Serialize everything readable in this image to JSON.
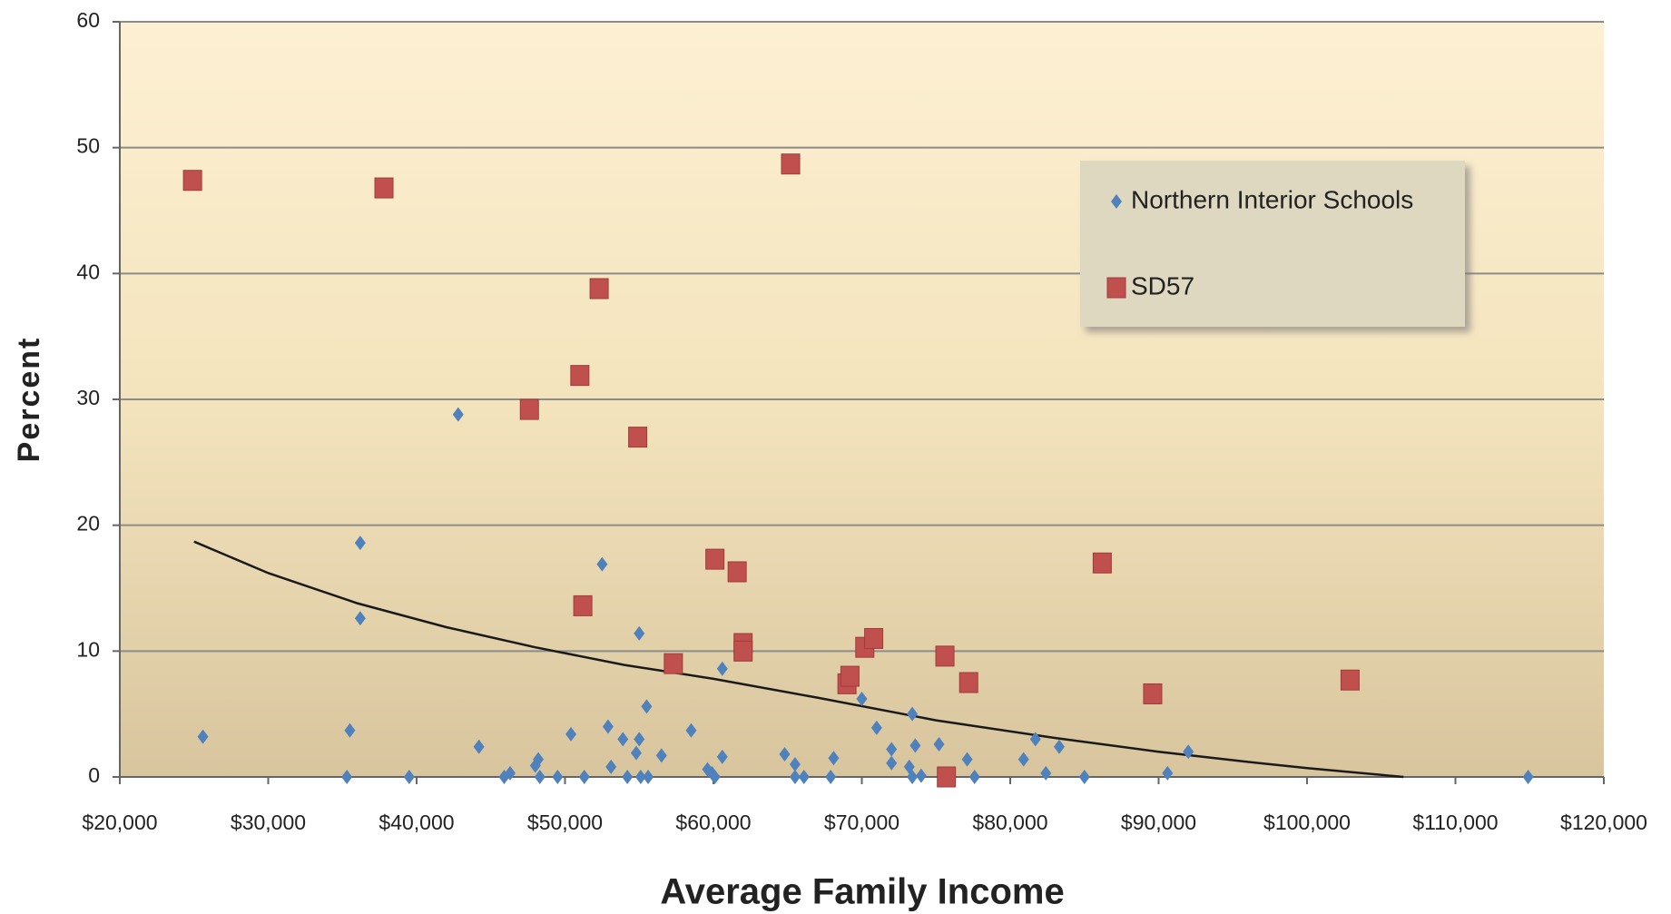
{
  "chart_data": {
    "type": "scatter",
    "x_label": "Average Family Income",
    "y_label": "Percent",
    "xlim": [
      20000,
      120000
    ],
    "ylim": [
      0,
      60
    ],
    "xticks": [
      {
        "value": 20000,
        "label": "$20,000"
      },
      {
        "value": 30000,
        "label": "$30,000"
      },
      {
        "value": 40000,
        "label": "$40,000"
      },
      {
        "value": 50000,
        "label": "$50,000"
      },
      {
        "value": 60000,
        "label": "$60,000"
      },
      {
        "value": 70000,
        "label": "$70,000"
      },
      {
        "value": 80000,
        "label": "$80,000"
      },
      {
        "value": 90000,
        "label": "$90,000"
      },
      {
        "value": 100000,
        "label": "$100,000"
      },
      {
        "value": 110000,
        "label": "$110,000"
      },
      {
        "value": 120000,
        "label": "$120,000"
      }
    ],
    "yticks": [
      0,
      10,
      20,
      30,
      40,
      50,
      60
    ],
    "grid": true,
    "legend": "upper-right",
    "series": [
      {
        "name": "Northern Interior Schools",
        "color": "#4f81bd",
        "marker": "diamond",
        "x": [
          25600,
          35300,
          35500,
          36200,
          36200,
          39500,
          42800,
          44200,
          45900,
          46300,
          48000,
          48200,
          48300,
          49500,
          50400,
          51300,
          52500,
          52900,
          53100,
          53900,
          54200,
          54800,
          55000,
          55000,
          55100,
          55500,
          55600,
          56500,
          58500,
          59600,
          59900,
          60100,
          60600,
          60600,
          64800,
          65500,
          65500,
          66100,
          67900,
          68100,
          70000,
          71000,
          72000,
          72000,
          73200,
          73400,
          73400,
          73600,
          74000,
          75200,
          77100,
          77600,
          80900,
          81700,
          82400,
          83300,
          85000,
          90600,
          92000,
          114900
        ],
        "values": [
          3.2,
          0,
          3.7,
          12.6,
          18.6,
          0,
          28.8,
          2.4,
          0,
          0.3,
          0.9,
          1.4,
          0,
          0,
          3.4,
          0,
          16.9,
          4,
          0.8,
          3,
          0,
          1.9,
          3,
          11.4,
          0,
          5.6,
          0,
          1.7,
          3.7,
          0.6,
          0.3,
          0,
          1.6,
          8.6,
          1.8,
          1,
          0,
          0,
          0,
          1.5,
          6.2,
          3.9,
          2.2,
          1.1,
          0.8,
          5,
          0,
          2.5,
          0.1,
          2.6,
          1.4,
          0,
          1.4,
          3,
          0.3,
          2.4,
          0,
          0.3,
          2,
          0
        ]
      },
      {
        "name": "SD57",
        "color": "#c0504d",
        "marker": "square",
        "x": [
          24900,
          37800,
          47600,
          51000,
          51200,
          52300,
          54900,
          57300,
          60100,
          61600,
          62000,
          62000,
          65200,
          69000,
          69200,
          70200,
          70800,
          75600,
          75700,
          77200,
          86200,
          89600,
          102900
        ],
        "values": [
          47.4,
          46.8,
          29.2,
          31.9,
          13.6,
          38.8,
          27,
          9,
          17.3,
          16.3,
          10.6,
          10,
          48.7,
          7.4,
          8,
          10.3,
          11,
          9.6,
          0,
          7.5,
          17,
          6.6,
          7.7
        ]
      }
    ],
    "trendline": {
      "color": "#1a1a1a",
      "x": [
        25000,
        30000,
        36000,
        42000,
        48000,
        54000,
        60000,
        67000,
        75000,
        83000,
        90000,
        96000,
        100000,
        106500
      ],
      "values": [
        18.7,
        16.2,
        13.8,
        11.9,
        10.3,
        8.9,
        7.8,
        6.3,
        4.5,
        3.1,
        2.0,
        1.2,
        0.7,
        0
      ]
    }
  }
}
